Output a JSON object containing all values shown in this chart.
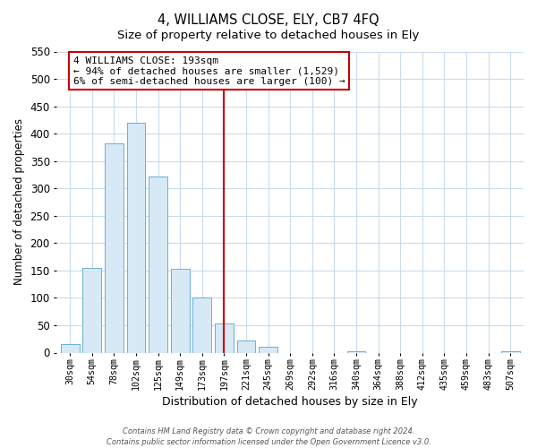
{
  "title": "4, WILLIAMS CLOSE, ELY, CB7 4FQ",
  "subtitle": "Size of property relative to detached houses in Ely",
  "xlabel": "Distribution of detached houses by size in Ely",
  "ylabel": "Number of detached properties",
  "bar_labels": [
    "30sqm",
    "54sqm",
    "78sqm",
    "102sqm",
    "125sqm",
    "149sqm",
    "173sqm",
    "197sqm",
    "221sqm",
    "245sqm",
    "269sqm",
    "292sqm",
    "316sqm",
    "340sqm",
    "364sqm",
    "388sqm",
    "412sqm",
    "435sqm",
    "459sqm",
    "483sqm",
    "507sqm"
  ],
  "bar_values": [
    15,
    155,
    383,
    420,
    322,
    153,
    100,
    54,
    22,
    11,
    0,
    0,
    0,
    3,
    0,
    0,
    0,
    0,
    0,
    0,
    3
  ],
  "bar_color": "#d6e9f5",
  "bar_edge_color": "#6ab0d4",
  "vline_x_index": 7,
  "vline_color": "#cc0000",
  "ylim": [
    0,
    550
  ],
  "yticks": [
    0,
    50,
    100,
    150,
    200,
    250,
    300,
    350,
    400,
    450,
    500,
    550
  ],
  "annotation_title": "4 WILLIAMS CLOSE: 193sqm",
  "annotation_line1": "← 94% of detached houses are smaller (1,529)",
  "annotation_line2": "6% of semi-detached houses are larger (100) →",
  "annotation_box_color": "#ffffff",
  "annotation_box_edge": "#cc0000",
  "grid_color": "#c8dcee",
  "footer1": "Contains HM Land Registry data © Crown copyright and database right 2024.",
  "footer2": "Contains public sector information licensed under the Open Government Licence v3.0."
}
